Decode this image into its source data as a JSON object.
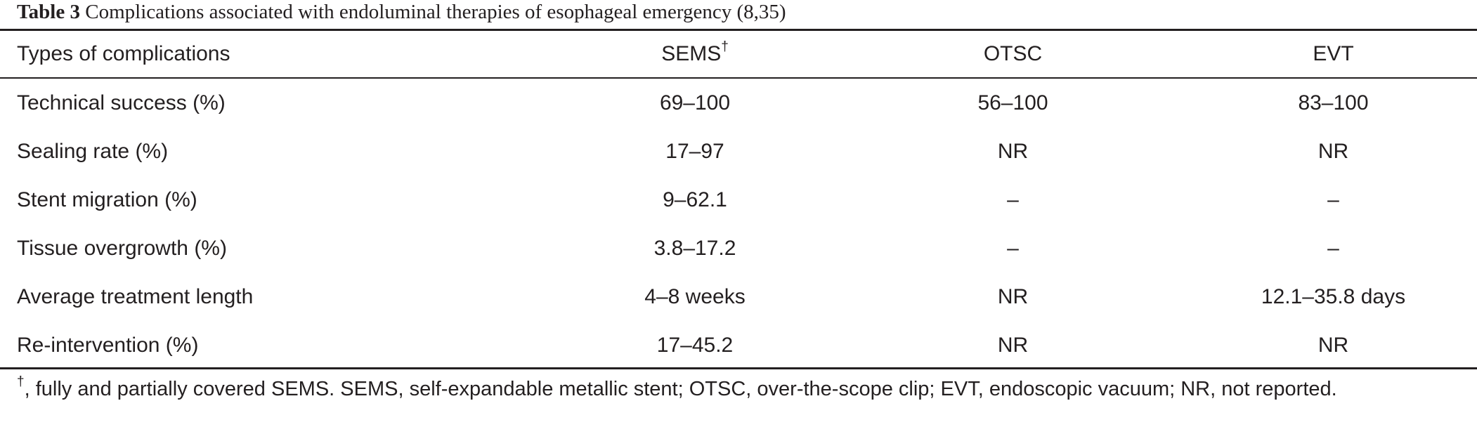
{
  "caption": {
    "label": "Table 3",
    "text": " Complications associated with endoluminal therapies of esophageal emergency (8,35)"
  },
  "table": {
    "headers": {
      "col0": "Types of complications",
      "col1": "SEMS",
      "col1_sup": "†",
      "col2": "OTSC",
      "col3": "EVT"
    },
    "rows": [
      [
        "Technical success (%)",
        "69–100",
        "56–100",
        "83–100"
      ],
      [
        "Sealing rate (%)",
        "17–97",
        "NR",
        "NR"
      ],
      [
        "Stent migration (%)",
        "9–62.1",
        "–",
        "–"
      ],
      [
        "Tissue overgrowth (%)",
        "3.8–17.2",
        "–",
        "–"
      ],
      [
        "Average treatment length",
        "4–8 weeks",
        "NR",
        "12.1–35.8 days"
      ],
      [
        "Re-intervention (%)",
        "17–45.2",
        "NR",
        "NR"
      ]
    ]
  },
  "footnote": {
    "sup": "†",
    "text": ", fully and partially covered SEMS. SEMS, self-expandable metallic stent; OTSC, over-the-scope clip; EVT, endoscopic vacuum; NR, not reported."
  }
}
